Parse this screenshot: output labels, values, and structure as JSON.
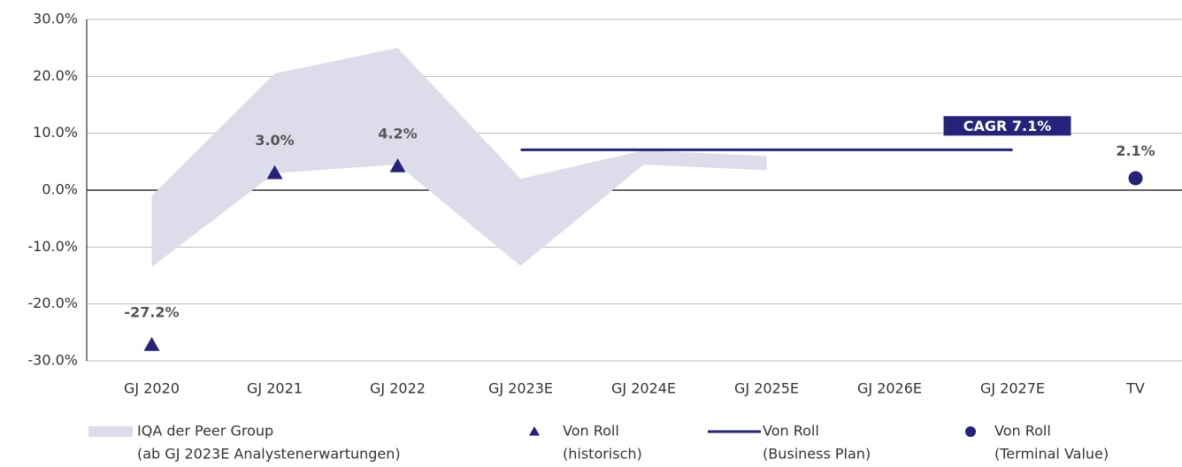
{
  "chart_data": {
    "type": "line",
    "categories": [
      "GJ 2020",
      "GJ 2021",
      "GJ 2022",
      "GJ 2023E",
      "GJ 2024E",
      "GJ 2025E",
      "GJ 2026E",
      "GJ 2027E",
      "TV"
    ],
    "ylim": [
      -30,
      30
    ],
    "yticks": [
      {
        "value": -30,
        "label": "-30.0%"
      },
      {
        "value": -20,
        "label": "-20.0%"
      },
      {
        "value": -10,
        "label": "-10.0%"
      },
      {
        "value": 0,
        "label": "0.0%"
      },
      {
        "value": 10,
        "label": "10.0%"
      },
      {
        "value": 20,
        "label": "20.0%"
      },
      {
        "value": 30,
        "label": "30.0%"
      }
    ],
    "grid": true,
    "band": {
      "name": "IQA der Peer Group",
      "description": "(ab GJ 2023E Analystenerwartungen)",
      "color": "#dcdcea",
      "lower": [
        -13.5,
        3,
        4.5,
        -13.3,
        4.5,
        3.5,
        null,
        null,
        null
      ],
      "upper": [
        -1,
        20.5,
        25,
        2,
        7,
        6,
        null,
        null,
        null
      ]
    },
    "series": [
      {
        "name": "Von Roll",
        "description": "(historisch)",
        "marker": "triangle",
        "color": "#25237a",
        "values": [
          -27.2,
          3.0,
          4.2,
          null,
          null,
          null,
          null,
          null,
          null
        ],
        "value_labels": [
          "-27.2%",
          "3.0%",
          "4.2%",
          null,
          null,
          null,
          null,
          null,
          null
        ]
      },
      {
        "name": "Von Roll",
        "description": "(Business Plan)",
        "marker": "line",
        "color": "#25237a",
        "values": [
          null,
          null,
          null,
          7.1,
          7.1,
          7.1,
          7.1,
          7.1,
          null
        ]
      },
      {
        "name": "Von Roll",
        "description": "(Terminal Value)",
        "marker": "circle",
        "color": "#25237a",
        "values": [
          null,
          null,
          null,
          null,
          null,
          null,
          null,
          null,
          2.1
        ],
        "value_labels": [
          null,
          null,
          null,
          null,
          null,
          null,
          null,
          null,
          "2.1%"
        ]
      }
    ],
    "annotations": [
      {
        "text": "CAGR 7.1%"
      }
    ]
  }
}
